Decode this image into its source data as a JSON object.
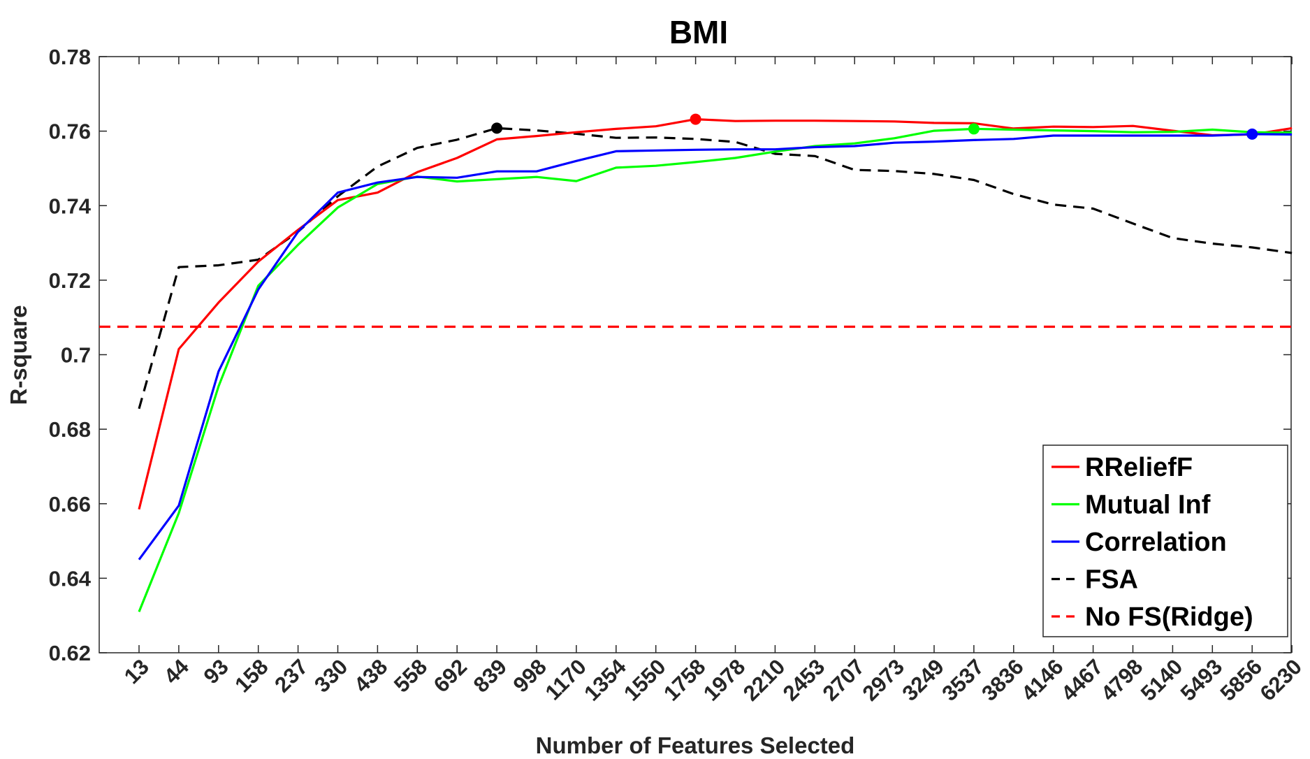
{
  "chart_data": {
    "type": "line",
    "title": "BMI",
    "xlabel": "Number of Features Selected",
    "ylabel": "R-square",
    "categories": [
      "13",
      "44",
      "93",
      "158",
      "237",
      "330",
      "438",
      "558",
      "692",
      "839",
      "998",
      "1170",
      "1354",
      "1550",
      "1758",
      "1978",
      "2210",
      "2453",
      "2707",
      "2973",
      "3249",
      "3537",
      "3836",
      "4146",
      "4467",
      "4798",
      "5140",
      "5493",
      "5856",
      "6230"
    ],
    "ylim": [
      0.62,
      0.78
    ],
    "yticks": [
      "0.62",
      "0.64",
      "0.66",
      "0.68",
      "0.7",
      "0.72",
      "0.74",
      "0.76",
      "0.78"
    ],
    "grid": false,
    "legend_position": "bottom-right",
    "series": [
      {
        "name": "RReliefF",
        "color": "#ff0000",
        "dash": "solid",
        "values": [
          0.6585,
          0.7015,
          0.714,
          0.725,
          0.7335,
          0.7415,
          0.7435,
          0.749,
          0.7528,
          0.7578,
          0.7587,
          0.7597,
          0.7606,
          0.7613,
          0.7632,
          0.7627,
          0.7628,
          0.7628,
          0.7627,
          0.7626,
          0.7622,
          0.7621,
          0.7607,
          0.7612,
          0.7611,
          0.7614,
          0.7601,
          0.7589,
          0.7591,
          0.7608
        ],
        "marker": {
          "index": 14,
          "value": 0.7632
        }
      },
      {
        "name": "Mutual Inf",
        "color": "#00ff00",
        "dash": "solid",
        "values": [
          0.631,
          0.6575,
          0.6915,
          0.7185,
          0.7295,
          0.7395,
          0.7458,
          0.7478,
          0.7465,
          0.7471,
          0.7477,
          0.7466,
          0.7502,
          0.7507,
          0.7517,
          0.7528,
          0.7545,
          0.756,
          0.7567,
          0.7581,
          0.7601,
          0.7606,
          0.7604,
          0.7602,
          0.76,
          0.7597,
          0.7598,
          0.7604,
          0.7597,
          0.7596
        ],
        "marker": {
          "index": 21,
          "value": 0.7606
        }
      },
      {
        "name": "Correlation",
        "color": "#0000ff",
        "dash": "solid",
        "values": [
          0.645,
          0.6595,
          0.6955,
          0.7175,
          0.733,
          0.7435,
          0.7462,
          0.7477,
          0.7475,
          0.7492,
          0.7492,
          0.752,
          0.7546,
          0.7548,
          0.755,
          0.7551,
          0.7551,
          0.7557,
          0.756,
          0.7569,
          0.7572,
          0.7576,
          0.7579,
          0.7588,
          0.7588,
          0.7588,
          0.7588,
          0.7588,
          0.7592,
          0.7591
        ],
        "marker": {
          "index": 28,
          "value": 0.7592
        }
      },
      {
        "name": "FSA",
        "color": "#000000",
        "dash": "dashed",
        "values": [
          0.6855,
          0.7235,
          0.724,
          0.7255,
          0.733,
          0.7425,
          0.7505,
          0.7555,
          0.7577,
          0.7608,
          0.7602,
          0.7593,
          0.7582,
          0.7583,
          0.7579,
          0.7571,
          0.7539,
          0.7533,
          0.7496,
          0.7493,
          0.7485,
          0.7469,
          0.7431,
          0.7403,
          0.7392,
          0.7352,
          0.7313,
          0.7298,
          0.7288,
          0.7273
        ],
        "marker": {
          "index": 9,
          "value": 0.7608
        }
      },
      {
        "name": "No FS(Ridge)",
        "color": "#ff0000",
        "dash": "dashed",
        "values": [
          0.7075,
          0.7075,
          0.7075,
          0.7075,
          0.7075,
          0.7075,
          0.7075,
          0.7075,
          0.7075,
          0.7075,
          0.7075,
          0.7075,
          0.7075,
          0.7075,
          0.7075,
          0.7075,
          0.7075,
          0.7075,
          0.7075,
          0.7075,
          0.7075,
          0.7075,
          0.7075,
          0.7075,
          0.7075,
          0.7075,
          0.7075,
          0.7075,
          0.7075,
          0.7075
        ]
      }
    ]
  }
}
